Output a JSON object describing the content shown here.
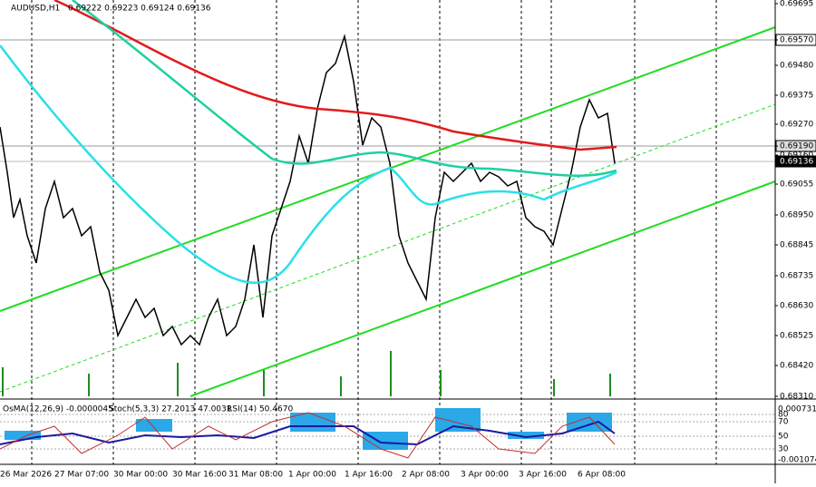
{
  "header": {
    "symbol": "AUDUSD,H1",
    "ohlc": "0.69222 0.69223 0.69124 0.69136"
  },
  "price_axis": [
    "0.69695",
    "0.69570",
    "0.69480",
    "0.69375",
    "0.69270",
    "0.69190",
    "0.69160",
    "0.69136",
    "0.69055",
    "0.68950",
    "0.68845",
    "0.68735",
    "0.68630",
    "0.68525",
    "0.68420",
    "0.68310"
  ],
  "indicator": {
    "osma": "OsMA(12,26,9) -0.0000045",
    "stoch": "Stoch(5,3,3) 27.2013 47.0031",
    "rsi": "RSI(14) 50.4670",
    "axis": [
      "0.000731",
      "80",
      "70",
      "50",
      "30",
      "-0.001074"
    ]
  },
  "time_axis": [
    "26 Mar 2026",
    "27 Mar 07:00",
    "30 Mar 00:00",
    "30 Mar 16:00",
    "31 Mar 08:00",
    "1 Apr 00:00",
    "1 Apr 16:00",
    "2 Apr 08:00",
    "3 Apr 00:00",
    "3 Apr 16:00",
    "6 Apr 08:00"
  ]
}
